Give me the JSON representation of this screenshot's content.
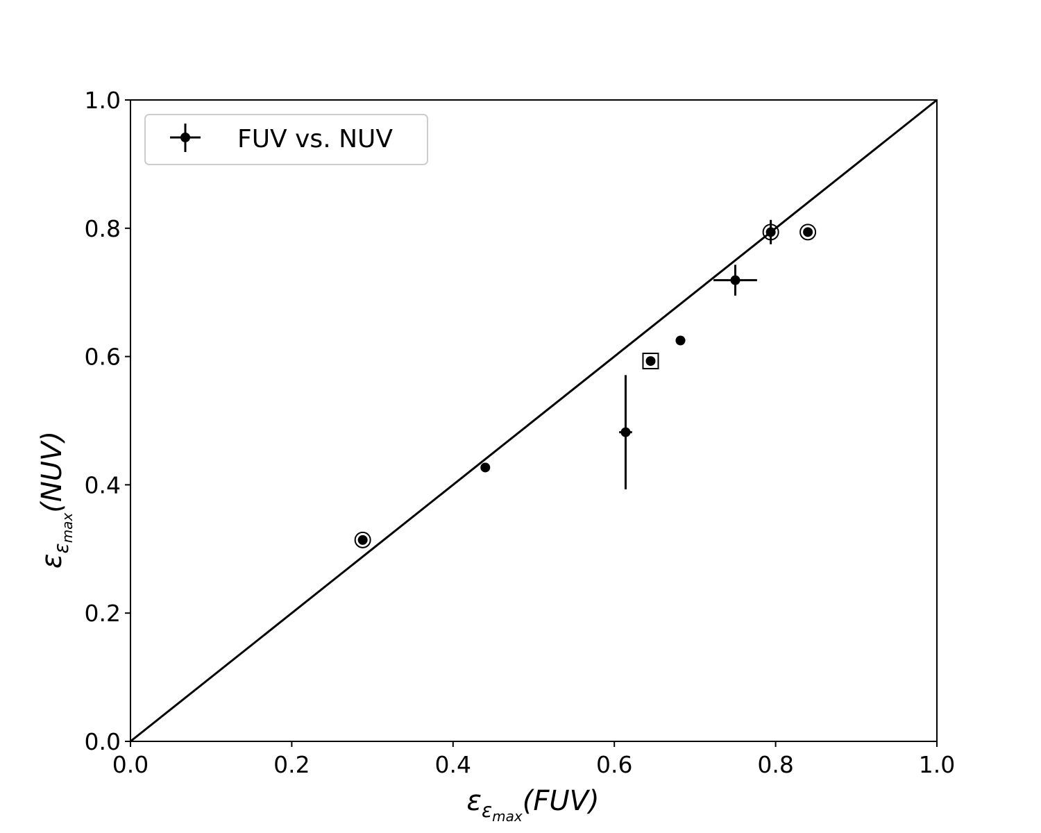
{
  "chart_data": {
    "type": "scatter",
    "xlabel": {
      "symbol": "ε",
      "subscript_symbol": "ε",
      "subscript_text": "max",
      "paren": "(FUV)"
    },
    "ylabel": {
      "symbol": "ε",
      "subscript_symbol": "ε",
      "subscript_text": "max",
      "paren": "(NUV)"
    },
    "xlim": [
      0.0,
      1.0
    ],
    "ylim": [
      0.0,
      1.0
    ],
    "xticks": [
      "0.0",
      "0.2",
      "0.4",
      "0.6",
      "0.8",
      "1.0"
    ],
    "yticks": [
      "0.0",
      "0.2",
      "0.4",
      "0.6",
      "0.8",
      "1.0"
    ],
    "grid": false,
    "legend": {
      "placement": "top-left",
      "entries": [
        "FUV vs. NUV"
      ]
    },
    "reference_line": {
      "type": "identity",
      "from": [
        0,
        0
      ],
      "to": [
        1,
        1
      ]
    },
    "series": [
      {
        "name": "FUV vs. NUV",
        "points": [
          {
            "x": 0.288,
            "y": 0.314,
            "xerr": 0.0,
            "yerr": 0.0,
            "marker": "circle"
          },
          {
            "x": 0.44,
            "y": 0.427,
            "xerr": 0.0,
            "yerr": 0.0,
            "marker": "none"
          },
          {
            "x": 0.614,
            "y": 0.482,
            "xerr": 0.008,
            "yerr": 0.089,
            "marker": "none"
          },
          {
            "x": 0.645,
            "y": 0.593,
            "xerr": 0.0,
            "yerr": 0.0,
            "marker": "square"
          },
          {
            "x": 0.682,
            "y": 0.625,
            "xerr": 0.006,
            "yerr": 0.0,
            "marker": "none"
          },
          {
            "x": 0.75,
            "y": 0.719,
            "xerr": 0.027,
            "yerr": 0.024,
            "marker": "none"
          },
          {
            "x": 0.794,
            "y": 0.794,
            "xerr": 0.0,
            "yerr": 0.019,
            "marker": "circle"
          },
          {
            "x": 0.84,
            "y": 0.794,
            "xerr": 0.0,
            "yerr": 0.0,
            "marker": "circle"
          }
        ]
      }
    ]
  }
}
